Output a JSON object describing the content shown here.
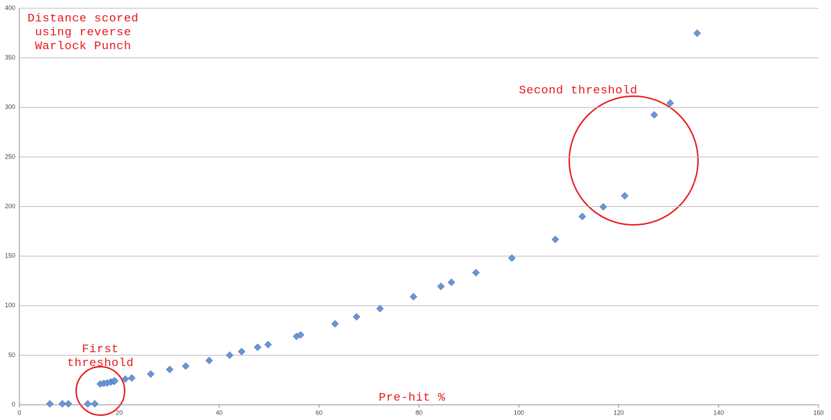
{
  "chart_data": {
    "type": "scatter",
    "title": "Distance scored using reverse Warlock Punch",
    "xlabel": "Pre-hit %",
    "annotations": [
      "First threshold",
      "Second threshold"
    ],
    "xlim": [
      0,
      160
    ],
    "xticks": [
      0,
      20,
      40,
      60,
      80,
      100,
      120,
      140,
      160
    ],
    "ylim": [
      0,
      400
    ],
    "yticks": [
      0,
      50,
      100,
      150,
      200,
      250,
      300,
      350,
      400
    ],
    "grid": true,
    "series": [
      {
        "color": "#6a96d6",
        "x": [
          6.1,
          8.6,
          9.8,
          13.7,
          15.1,
          16.2,
          16.9,
          17.6,
          18.3,
          18.9,
          19.1,
          21.2,
          22.5,
          26.3,
          30.1,
          33.3,
          38,
          42.1,
          44.5,
          47.7,
          49.8,
          55.5,
          56.3,
          63.2,
          67.5,
          72.2,
          78.9,
          84.4,
          86.5,
          91.4,
          98.6,
          107.3,
          112.7,
          116.9,
          121.2,
          127.1,
          130.3,
          135.7
        ],
        "values": [
          1,
          1,
          1,
          1,
          1,
          21,
          21.6,
          22,
          23,
          23.7,
          24,
          26,
          27,
          31,
          35.6,
          39,
          44.7,
          50,
          53.7,
          58,
          60.7,
          69,
          70.5,
          81.7,
          88.7,
          97,
          109,
          119.4,
          123.6,
          133.3,
          148,
          166.8,
          190,
          199.7,
          210.8,
          292.5,
          304.4,
          374.9
        ]
      }
    ]
  }
}
